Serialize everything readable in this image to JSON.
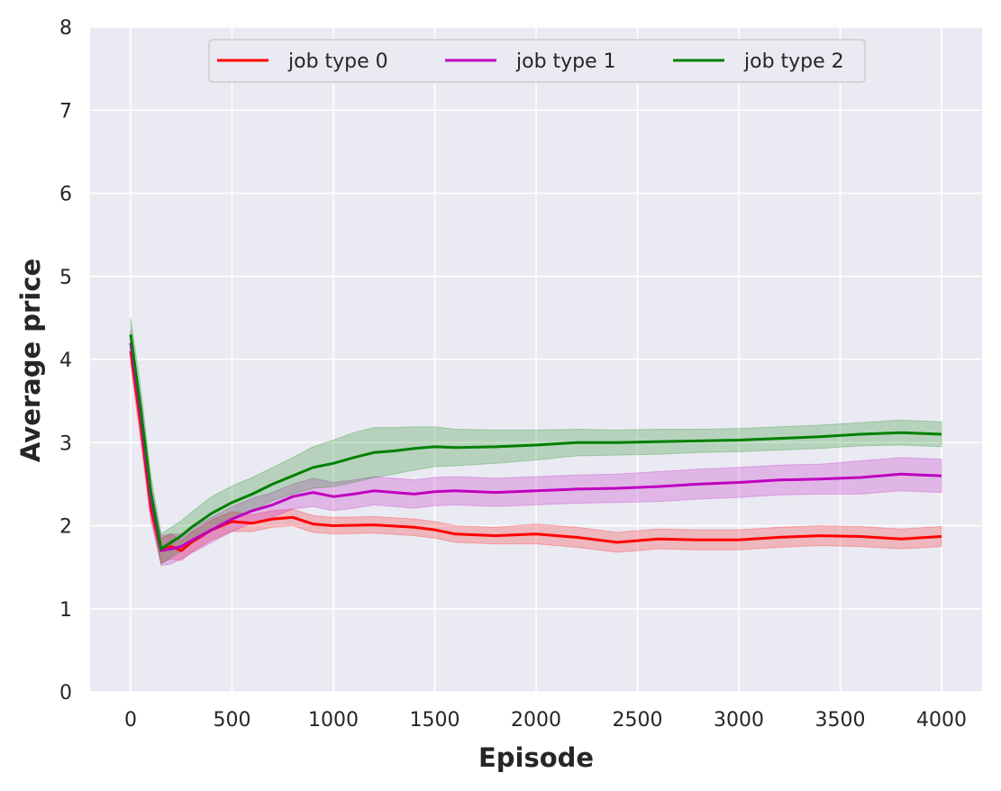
{
  "chart_data": {
    "type": "line",
    "title": "",
    "xlabel": "Episode",
    "ylabel": "Average price",
    "xlim": [
      -200,
      4200
    ],
    "ylim": [
      0,
      8
    ],
    "xticks": [
      0,
      500,
      1000,
      1500,
      2000,
      2500,
      3000,
      3500,
      4000
    ],
    "yticks": [
      0,
      1,
      2,
      3,
      4,
      5,
      6,
      7,
      8
    ],
    "grid": true,
    "legend_position": "top-center",
    "legend_columns": 3,
    "shaded_band": "variability band around each mean line",
    "series": [
      {
        "name": "job type 0",
        "color": "#ff0000",
        "x": [
          0,
          50,
          100,
          150,
          200,
          250,
          300,
          400,
          500,
          600,
          700,
          800,
          900,
          1000,
          1200,
          1400,
          1500,
          1600,
          1800,
          2000,
          2200,
          2400,
          2500,
          2600,
          2800,
          3000,
          3200,
          3400,
          3600,
          3800,
          4000
        ],
        "y": [
          4.1,
          3.2,
          2.2,
          1.7,
          1.75,
          1.7,
          1.8,
          1.95,
          2.05,
          2.03,
          2.08,
          2.1,
          2.02,
          2.0,
          2.01,
          1.98,
          1.95,
          1.9,
          1.88,
          1.9,
          1.86,
          1.8,
          1.82,
          1.84,
          1.83,
          1.83,
          1.86,
          1.88,
          1.87,
          1.84,
          1.87
        ],
        "band": [
          0.15,
          0.2,
          0.15,
          0.15,
          0.15,
          0.12,
          0.12,
          0.12,
          0.12,
          0.1,
          0.1,
          0.1,
          0.1,
          0.1,
          0.1,
          0.1,
          0.1,
          0.1,
          0.1,
          0.12,
          0.12,
          0.12,
          0.12,
          0.12,
          0.12,
          0.12,
          0.12,
          0.12,
          0.12,
          0.12,
          0.12
        ]
      },
      {
        "name": "job type 1",
        "color": "#bf00bf",
        "x": [
          0,
          50,
          100,
          150,
          200,
          250,
          300,
          400,
          500,
          600,
          700,
          800,
          900,
          1000,
          1100,
          1200,
          1300,
          1400,
          1500,
          1600,
          1800,
          2000,
          2200,
          2400,
          2600,
          2800,
          3000,
          3200,
          3400,
          3600,
          3800,
          4000
        ],
        "y": [
          4.2,
          3.3,
          2.3,
          1.7,
          1.72,
          1.75,
          1.82,
          1.95,
          2.08,
          2.18,
          2.25,
          2.35,
          2.4,
          2.35,
          2.38,
          2.42,
          2.4,
          2.38,
          2.41,
          2.42,
          2.4,
          2.42,
          2.44,
          2.45,
          2.47,
          2.5,
          2.52,
          2.55,
          2.56,
          2.58,
          2.62,
          2.6
        ],
        "band": [
          0.15,
          0.2,
          0.18,
          0.18,
          0.18,
          0.15,
          0.15,
          0.15,
          0.15,
          0.15,
          0.15,
          0.15,
          0.17,
          0.17,
          0.17,
          0.17,
          0.17,
          0.17,
          0.17,
          0.17,
          0.17,
          0.17,
          0.17,
          0.17,
          0.18,
          0.18,
          0.18,
          0.18,
          0.18,
          0.2,
          0.2,
          0.2
        ]
      },
      {
        "name": "job type 2",
        "color": "#008000",
        "x": [
          0,
          50,
          100,
          150,
          200,
          250,
          300,
          400,
          500,
          600,
          700,
          800,
          900,
          1000,
          1100,
          1200,
          1300,
          1400,
          1500,
          1600,
          1800,
          2000,
          2200,
          2400,
          2600,
          2800,
          3000,
          3200,
          3400,
          3600,
          3800,
          4000
        ],
        "y": [
          4.3,
          3.4,
          2.4,
          1.72,
          1.8,
          1.88,
          1.98,
          2.15,
          2.28,
          2.38,
          2.5,
          2.6,
          2.7,
          2.75,
          2.82,
          2.88,
          2.9,
          2.93,
          2.95,
          2.94,
          2.95,
          2.97,
          3.0,
          3.0,
          3.01,
          3.02,
          3.03,
          3.05,
          3.07,
          3.1,
          3.12,
          3.1
        ],
        "band": [
          0.2,
          0.25,
          0.2,
          0.18,
          0.18,
          0.18,
          0.18,
          0.2,
          0.2,
          0.2,
          0.2,
          0.22,
          0.25,
          0.28,
          0.3,
          0.3,
          0.28,
          0.26,
          0.24,
          0.22,
          0.2,
          0.18,
          0.16,
          0.15,
          0.15,
          0.14,
          0.14,
          0.14,
          0.14,
          0.14,
          0.15,
          0.15
        ]
      }
    ]
  }
}
